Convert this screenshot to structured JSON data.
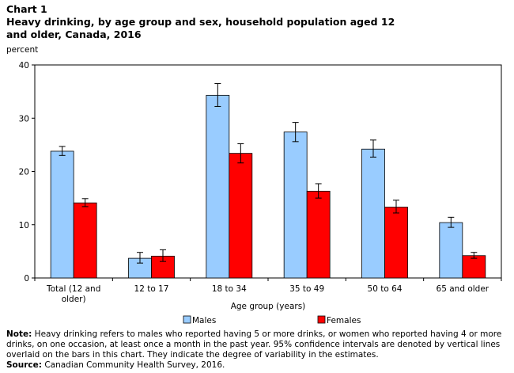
{
  "header": {
    "chart_label": "Chart 1",
    "title": "Heavy drinking,  by age group and sex, household population aged 12 and older, Canada, 2016"
  },
  "notes": {
    "note_label": "Note:",
    "note_text": " Heavy drinking refers to males who reported having 5 or more drinks, or women who reported having 4 or more drinks, on one occasion, at least once a month in the past year. 95% confidence intervals are denoted by vertical lines overlaid on the bars in this chart. They indicate the degree of variability in the estimates.",
    "source_label": "Source:",
    "source_text": " Canadian Community Health Survey, 2016."
  },
  "colors": {
    "males": "#99ccff",
    "females": "#ff0000",
    "bar_stroke": "#000000"
  },
  "chart_data": {
    "type": "bar",
    "ylabel": "percent",
    "xlabel": "Age group (years)",
    "ylim": [
      0,
      40
    ],
    "yticks": [
      0,
      10,
      20,
      30,
      40
    ],
    "grid": false,
    "legend_position": "bottom",
    "categories": [
      [
        "Total (12 and",
        "older)"
      ],
      [
        "12 to 17"
      ],
      [
        "18 to 34"
      ],
      [
        "35 to 49"
      ],
      [
        "50 to 64"
      ],
      [
        "65 and older"
      ]
    ],
    "series": [
      {
        "name": "Males",
        "values": [
          23.8,
          3.7,
          34.3,
          27.4,
          24.2,
          10.4
        ],
        "ci_low": [
          23.0,
          2.8,
          32.2,
          25.6,
          22.7,
          9.5
        ],
        "ci_high": [
          24.7,
          4.8,
          36.5,
          29.2,
          25.9,
          11.4
        ]
      },
      {
        "name": "Females",
        "values": [
          14.1,
          4.1,
          23.4,
          16.3,
          13.3,
          4.2
        ],
        "ci_low": [
          13.4,
          3.1,
          21.6,
          15.0,
          12.2,
          3.7
        ],
        "ci_high": [
          14.9,
          5.3,
          25.2,
          17.7,
          14.6,
          4.8
        ]
      }
    ]
  }
}
